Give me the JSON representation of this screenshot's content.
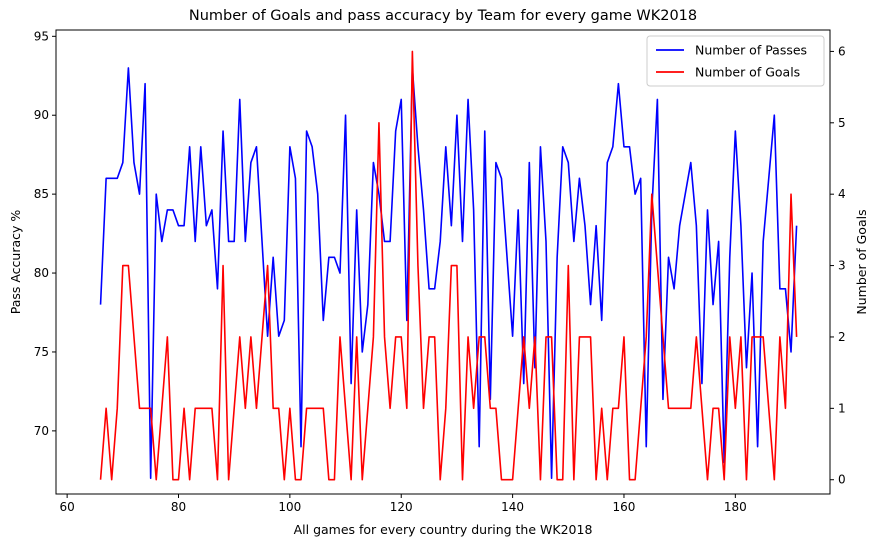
{
  "chart_data": {
    "type": "line",
    "title": "Number of Goals and pass accuracy by Team for every game WK2018",
    "xlabel": "All games for every country during the WK2018",
    "ylabel": "Pass Accuracy %",
    "ylabel_right": "Number of Goals",
    "xlim": [
      58,
      197
    ],
    "ylim": [
      66,
      95.4
    ],
    "ylim_right": [
      -0.2,
      6.3
    ],
    "xticks": [
      60,
      80,
      100,
      120,
      140,
      160,
      180
    ],
    "yticks": [
      70,
      75,
      80,
      85,
      90,
      95
    ],
    "yticks_right": [
      0,
      1,
      2,
      3,
      4,
      5,
      6
    ],
    "grid": false,
    "legend_position": "upper right",
    "x_start": 66,
    "series": [
      {
        "name": "Number of Passes",
        "axis": "left",
        "color": "#0000ff",
        "values": [
          78,
          86,
          86,
          86,
          87,
          93,
          87,
          85,
          92,
          67,
          85,
          82,
          84,
          84,
          83,
          83,
          88,
          82,
          88,
          83,
          84,
          79,
          89,
          82,
          82,
          91,
          82,
          87,
          88,
          82,
          76,
          81,
          76,
          77,
          88,
          86,
          69,
          89,
          88,
          85,
          77,
          81,
          81,
          80,
          90,
          73,
          84,
          75,
          78,
          87,
          85,
          82,
          82,
          89,
          91,
          77,
          93,
          88,
          84,
          79,
          79,
          82,
          88,
          83,
          90,
          82,
          91,
          84,
          69,
          89,
          72,
          87,
          86,
          81,
          76,
          84,
          73,
          87,
          74,
          88,
          82,
          67,
          81,
          88,
          87,
          82,
          86,
          83,
          78,
          83,
          77,
          87,
          88,
          92,
          88,
          88,
          85,
          86,
          69,
          84,
          91,
          72,
          81,
          79,
          83,
          85,
          87,
          83,
          73,
          84,
          78,
          82,
          68,
          81,
          89,
          83,
          74,
          80,
          69,
          82,
          86,
          90,
          79,
          79,
          75,
          83
        ]
      },
      {
        "name": "Number of Goals",
        "axis": "right",
        "color": "#ff0000",
        "values": [
          0,
          1,
          0,
          1,
          3,
          3,
          2,
          1,
          1,
          1,
          0,
          1,
          2,
          0,
          0,
          1,
          0,
          1,
          1,
          1,
          1,
          0,
          3,
          0,
          1,
          2,
          1,
          2,
          1,
          2,
          3,
          1,
          1,
          0,
          1,
          0,
          0,
          1,
          1,
          1,
          1,
          0,
          0,
          2,
          1,
          0,
          2,
          0,
          1,
          2,
          5,
          2,
          1,
          2,
          2,
          1,
          6,
          3,
          1,
          2,
          2,
          0,
          1,
          3,
          3,
          0,
          2,
          1,
          2,
          2,
          1,
          1,
          0,
          0,
          0,
          1,
          2,
          1,
          2,
          0,
          2,
          2,
          0,
          0,
          3,
          0,
          2,
          2,
          2,
          0,
          1,
          0,
          1,
          1,
          2,
          0,
          0,
          1,
          2,
          4,
          3,
          2,
          1,
          1,
          1,
          1,
          1,
          2,
          1,
          0,
          1,
          1,
          0,
          2,
          1,
          2,
          0,
          2,
          2,
          2,
          1,
          0,
          2,
          1,
          4,
          2
        ]
      }
    ]
  }
}
